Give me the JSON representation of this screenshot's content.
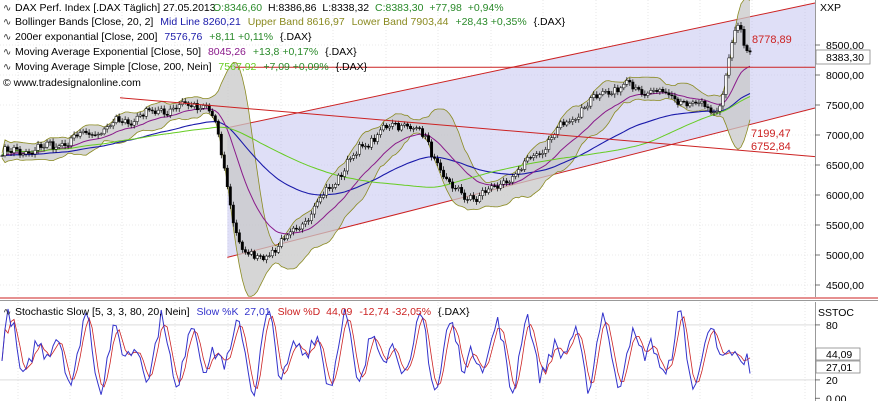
{
  "chart_data": [
    {
      "type": "candlestick",
      "title": "DAX Perf. Index [.DAX  Täglich] 27.05.2013",
      "ohlc_text": {
        "o": "O:8346,60",
        "h": "H:8386,86",
        "l": "L:8338,32",
        "c": "C:8383,30",
        "chg": "+77,98",
        "pct": "+0,94%"
      },
      "axis_label": "XXP",
      "price_tag": "8383,30",
      "y_ticks": [
        "8500,00",
        "8000,00",
        "7500,00",
        "7000,00",
        "6500,00",
        "6000,00",
        "5500,00",
        "5000,00",
        "4500,00"
      ],
      "ylim": [
        4300,
        9250
      ],
      "annotations": [
        "8778,89",
        "7199,47",
        "6752,84"
      ],
      "indicators": [
        {
          "name": "Bollinger Bands [Close, 20, 2]",
          "mid_label": "Mid Line 8260,21",
          "upper_label": "Upper Band 8616,97",
          "lower_label": "Lower Band 7903,44",
          "change": "+28,43 +0,35%",
          "suffix": "{.DAX}",
          "color": "#1a1aaa"
        },
        {
          "name": "200er exponantial [Close, 200]",
          "value": "7576,76",
          "change": "+8,11 +0,11%",
          "suffix": "{.DAX}",
          "color": "#1a1aaa"
        },
        {
          "name": "Moving Average Exponential [Close, 50]",
          "value": "8045,26",
          "change": "+13,8 +0,17%",
          "suffix": "{.DAX}",
          "color": "#8a1a8a"
        },
        {
          "name": "Moving Average Simple [Close, 200, Nein]",
          "value": "7567,92",
          "change": "+7,09 +0,09%",
          "suffix": "{.DAX}",
          "color": "#66cc22"
        }
      ],
      "watermark": "© www.tradesignalonline.com",
      "key_points": [
        {
          "label": "start",
          "close": 6700
        },
        {
          "label": "summer 2011 high",
          "close": 7500
        },
        {
          "label": "2011 low",
          "close": 4960
        },
        {
          "label": "2012 spring high",
          "close": 7190
        },
        {
          "label": "2012 mid low",
          "close": 5970
        },
        {
          "label": "early 2013",
          "close": 7800
        },
        {
          "label": "april 2013 low",
          "close": 7450
        },
        {
          "label": "may 2013 high",
          "close": 8778.89
        },
        {
          "label": "last",
          "close": 8383.3
        }
      ],
      "horizontal_line": 8130,
      "channel": {
        "lower_start": 4960,
        "lower_end": 7450,
        "upper_start": 7120,
        "upper_end": 9200
      }
    },
    {
      "type": "line",
      "title": "Stochastic Slow [5, 3, 3, 80, 20, Nein]",
      "series": [
        {
          "name": "Slow %K",
          "last": "27,01",
          "color": "#3333cc"
        },
        {
          "name": "Slow %D",
          "last": "44,09",
          "color": "#cc2222"
        }
      ],
      "change_text": "-12,74 -32,05%",
      "suffix": "{.DAX}",
      "axis_label": "SSTOC",
      "y_ticks": [
        "80",
        "20",
        "0,00"
      ],
      "value_tags": [
        "44,09",
        "27,01"
      ],
      "levels": [
        80,
        20
      ],
      "ylim": [
        -3,
        105
      ]
    }
  ]
}
